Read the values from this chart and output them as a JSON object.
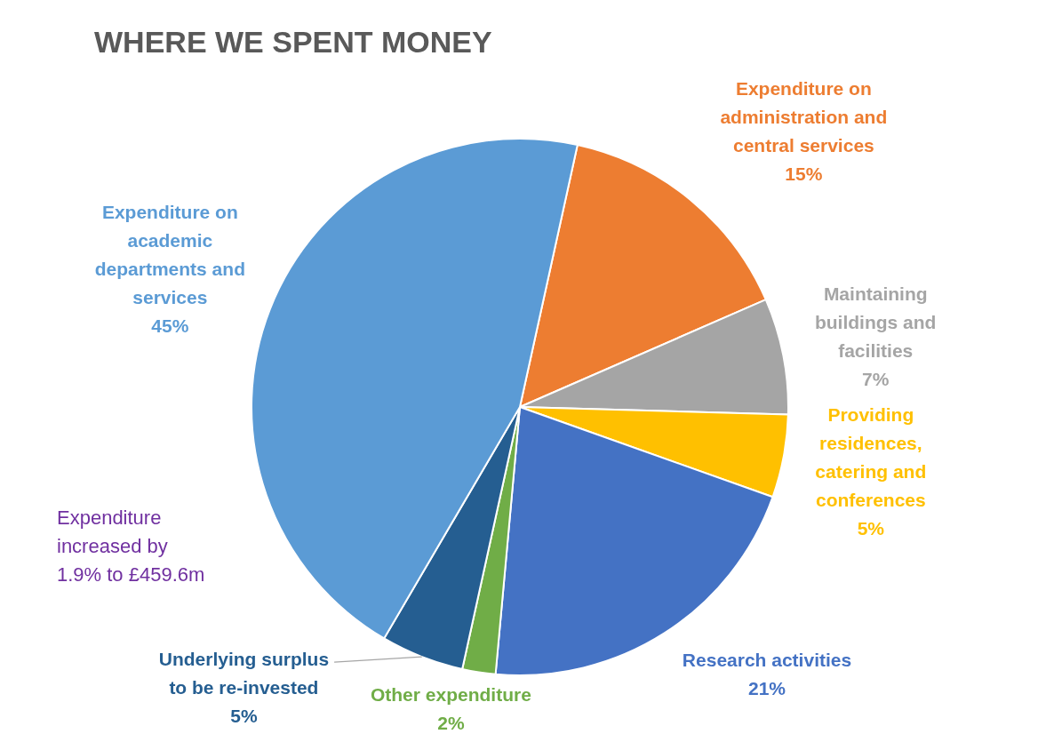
{
  "chart_data": {
    "type": "pie",
    "title": "WHERE WE SPENT MONEY",
    "categories": [
      "Expenditure on administration and central services",
      "Maintaining buildings and facilities",
      "Providing residences, catering and conferences",
      "Research activities",
      "Other expenditure",
      "Underlying surplus to be re-invested",
      "Expenditure on academic departments and services"
    ],
    "values": [
      15,
      7,
      5,
      21,
      2,
      5,
      45
    ],
    "value_labels": [
      "15%",
      "7%",
      "5%",
      "21%",
      "2%",
      "5%",
      "45%"
    ],
    "colors": [
      "#ed7d31",
      "#a5a5a5",
      "#ffc000",
      "#4472c4",
      "#70ad47",
      "#255e91",
      "#5b9bd5"
    ],
    "annotations": [
      "Expenditure increased by 1.9% to £459.6m"
    ],
    "legend": false
  }
}
